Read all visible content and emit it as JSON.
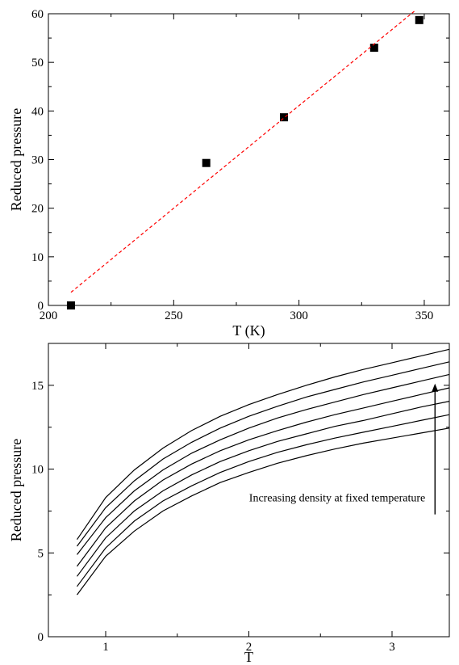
{
  "chart_data": [
    {
      "type": "scatter",
      "xlabel": "T (K)",
      "ylabel": "Reduced pressure",
      "xlim": [
        200,
        360
      ],
      "ylim": [
        0,
        60
      ],
      "xticks": [
        200,
        250,
        300,
        350
      ],
      "yticks": [
        0,
        10,
        20,
        30,
        40,
        50,
        60
      ],
      "grid": false,
      "series": [
        {
          "style": "square-markers",
          "color": "#000000",
          "x": [
            209,
            263,
            294,
            330,
            348
          ],
          "y": [
            0,
            29.3,
            38.7,
            53,
            58.7
          ]
        },
        {
          "style": "dashed-line",
          "color": "#ff0000",
          "x": [
            209,
            346
          ],
          "y": [
            2.7,
            60.5
          ]
        }
      ]
    },
    {
      "type": "line",
      "xlabel": "T",
      "ylabel": "Reduced pressure",
      "xlim": [
        0.6,
        3.4
      ],
      "ylim": [
        0,
        17.5
      ],
      "xticks": [
        1,
        2,
        3
      ],
      "yticks": [
        0,
        5,
        10,
        15
      ],
      "grid": false,
      "annotation": {
        "text": "Increasing density at fixed temperature",
        "arrow_x": 3.3,
        "arrow_from_y": 7.3,
        "arrow_to_y": 15.1
      },
      "x": [
        0.8,
        1.0,
        1.2,
        1.4,
        1.6,
        1.8,
        2.0,
        2.2,
        2.4,
        2.6,
        2.8,
        3.0,
        3.2,
        3.4
      ],
      "series": [
        {
          "color": "#000000",
          "values": [
            2.5,
            4.8,
            6.3,
            7.5,
            8.4,
            9.2,
            9.8,
            10.35,
            10.8,
            11.2,
            11.55,
            11.85,
            12.15,
            12.45
          ]
        },
        {
          "color": "#000000",
          "values": [
            3.0,
            5.3,
            6.9,
            8.1,
            9.0,
            9.8,
            10.45,
            11.0,
            11.45,
            11.85,
            12.2,
            12.55,
            12.9,
            13.25
          ]
        },
        {
          "color": "#000000",
          "values": [
            3.6,
            5.9,
            7.5,
            8.7,
            9.65,
            10.45,
            11.1,
            11.65,
            12.1,
            12.55,
            12.9,
            13.3,
            13.7,
            14.05
          ]
        },
        {
          "color": "#000000",
          "values": [
            4.2,
            6.5,
            8.1,
            9.35,
            10.3,
            11.1,
            11.75,
            12.3,
            12.8,
            13.25,
            13.65,
            14.05,
            14.45,
            14.85
          ]
        },
        {
          "color": "#000000",
          "values": [
            4.9,
            7.1,
            8.7,
            9.95,
            10.95,
            11.75,
            12.45,
            13.05,
            13.55,
            14.0,
            14.45,
            14.85,
            15.25,
            15.65
          ]
        },
        {
          "color": "#000000",
          "values": [
            5.4,
            7.7,
            9.3,
            10.6,
            11.6,
            12.45,
            13.15,
            13.75,
            14.3,
            14.75,
            15.2,
            15.6,
            16.0,
            16.4
          ]
        },
        {
          "color": "#000000",
          "values": [
            5.8,
            8.3,
            9.95,
            11.25,
            12.3,
            13.15,
            13.85,
            14.45,
            15.0,
            15.5,
            15.95,
            16.35,
            16.75,
            17.15
          ]
        }
      ]
    }
  ]
}
